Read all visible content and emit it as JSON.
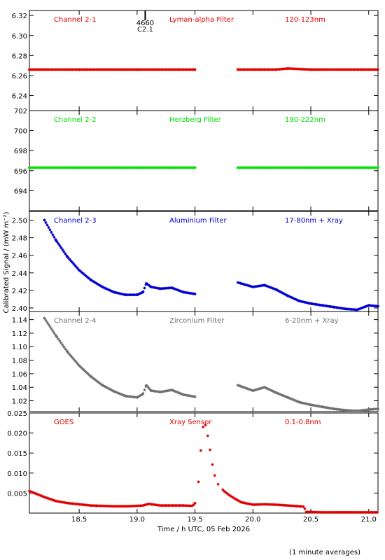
{
  "x_axis": {
    "label": "Time / h UTC, 05 Feb 2026",
    "range": [
      18.07,
      21.08
    ],
    "ticks": [
      18.5,
      19.0,
      19.5,
      20.0,
      20.5,
      21.0
    ],
    "tick_labels": [
      "18.5",
      "19.0",
      "19.5",
      "20.0",
      "20.5",
      "21.0"
    ]
  },
  "y_axis_label": "Calibrated Signal / (mW m⁻²)",
  "footer": "(1 minute averages)",
  "marker": {
    "x": 19.07,
    "line1": "4660",
    "line2": "C2.1"
  },
  "gap": [
    19.5,
    19.87
  ],
  "chart_data": [
    {
      "type": "scatter",
      "channel": "Channel 2-1",
      "filter": "Lyman-alpha Filter",
      "band": "120-123nm",
      "color": "#e00000",
      "ylim": [
        6.225,
        6.325
      ],
      "yticks": [
        6.24,
        6.26,
        6.28,
        6.3,
        6.32
      ],
      "ytick_labels": [
        "6.24",
        "6.26",
        "6.28",
        "6.30",
        "6.32"
      ],
      "x": [
        18.07,
        18.5,
        19.0,
        19.5,
        19.87,
        20.2,
        20.3,
        20.5,
        21.08
      ],
      "y": [
        6.266,
        6.266,
        6.266,
        6.266,
        6.266,
        6.266,
        6.267,
        6.266,
        6.266
      ]
    },
    {
      "type": "scatter",
      "channel": "Channel 2-2",
      "filter": "Herzberg Filter",
      "band": "190-222nm",
      "color": "#00e000",
      "ylim": [
        692.0,
        702.0
      ],
      "yticks": [
        694,
        696,
        698,
        700,
        702
      ],
      "ytick_labels": [
        "694",
        "696",
        "698",
        "700",
        "702"
      ],
      "x": [
        18.07,
        18.5,
        19.0,
        19.5,
        19.87,
        20.5,
        21.08
      ],
      "y": [
        696.3,
        696.3,
        696.3,
        696.3,
        696.3,
        696.3,
        696.3
      ]
    },
    {
      "type": "scatter",
      "channel": "Channel 2-3",
      "filter": "Aluminium Filter",
      "band": "17-80nm + Xray",
      "color": "#0000d0",
      "ylim": [
        2.396,
        2.51
      ],
      "yticks": [
        2.4,
        2.42,
        2.44,
        2.46,
        2.48,
        2.5
      ],
      "ytick_labels": [
        "2.40",
        "2.42",
        "2.44",
        "2.46",
        "2.48",
        "2.50"
      ],
      "x": [
        18.2,
        18.3,
        18.4,
        18.5,
        18.6,
        18.7,
        18.8,
        18.9,
        19.0,
        19.05,
        19.08,
        19.12,
        19.2,
        19.3,
        19.4,
        19.5,
        19.87,
        20.0,
        20.1,
        20.2,
        20.3,
        20.4,
        20.5,
        20.6,
        20.7,
        20.8,
        20.9,
        21.0,
        21.08
      ],
      "y": [
        2.5,
        2.477,
        2.458,
        2.443,
        2.432,
        2.424,
        2.418,
        2.415,
        2.415,
        2.418,
        2.428,
        2.424,
        2.422,
        2.423,
        2.418,
        2.416,
        2.429,
        2.424,
        2.426,
        2.421,
        2.414,
        2.408,
        2.405,
        2.403,
        2.401,
        2.399,
        2.398,
        2.403,
        2.402
      ]
    },
    {
      "type": "scatter",
      "channel": "Channel 2-4",
      "filter": "Zirconium Filter",
      "band": "6-20nm + Xray",
      "color": "#707070",
      "ylim": [
        1.004,
        1.152
      ],
      "yticks": [
        1.02,
        1.04,
        1.06,
        1.08,
        1.1,
        1.12,
        1.14
      ],
      "ytick_labels": [
        "1.02",
        "1.04",
        "1.06",
        "1.08",
        "1.10",
        "1.12",
        "1.14"
      ],
      "x": [
        18.2,
        18.3,
        18.4,
        18.5,
        18.6,
        18.7,
        18.8,
        18.9,
        19.0,
        19.05,
        19.08,
        19.12,
        19.2,
        19.3,
        19.4,
        19.5,
        19.87,
        20.0,
        20.1,
        20.2,
        20.3,
        20.4,
        20.5,
        20.6,
        20.7,
        20.8,
        20.9,
        21.0,
        21.08
      ],
      "y": [
        1.142,
        1.116,
        1.092,
        1.072,
        1.056,
        1.043,
        1.034,
        1.027,
        1.025,
        1.03,
        1.043,
        1.035,
        1.033,
        1.036,
        1.029,
        1.026,
        1.043,
        1.035,
        1.04,
        1.032,
        1.025,
        1.018,
        1.014,
        1.011,
        1.008,
        1.006,
        1.005,
        1.007,
        1.008
      ]
    },
    {
      "type": "scatter",
      "channel": "GOES",
      "filter": "Xray Sensor",
      "band": "0.1-0.8nm",
      "color": "#e00000",
      "ylim": [
        0.0,
        0.025
      ],
      "yticks": [
        0.005,
        0.01,
        0.015,
        0.02,
        0.025
      ],
      "ytick_labels": [
        "0.005",
        "0.010",
        "0.015",
        "0.020",
        "0.025"
      ],
      "x": [
        18.07,
        18.2,
        18.3,
        18.4,
        18.5,
        18.6,
        18.7,
        18.8,
        18.9,
        19.0,
        19.05,
        19.1,
        19.2,
        19.3,
        19.4,
        19.48,
        19.5,
        19.53,
        19.55,
        19.57,
        19.59,
        19.61,
        19.63,
        19.65,
        19.67,
        19.7,
        19.75,
        19.8,
        19.85,
        19.9,
        20.0,
        20.1,
        20.2,
        20.3,
        20.4,
        20.44,
        20.46,
        20.6,
        20.8,
        21.0,
        21.08
      ],
      "y": [
        0.0055,
        0.004,
        0.003,
        0.0025,
        0.0022,
        0.0019,
        0.0018,
        0.0017,
        0.0017,
        0.0018,
        0.0019,
        0.0023,
        0.0019,
        0.0019,
        0.0019,
        0.0018,
        0.0025,
        0.0078,
        0.0156,
        0.0215,
        0.022,
        0.0193,
        0.0158,
        0.0121,
        0.0094,
        0.0072,
        0.0055,
        0.0044,
        0.0035,
        0.0027,
        0.0021,
        0.0022,
        0.0021,
        0.0019,
        0.0017,
        0.0016,
        0.0003,
        0.0002,
        0.0002,
        0.0002,
        0.0002
      ]
    }
  ]
}
